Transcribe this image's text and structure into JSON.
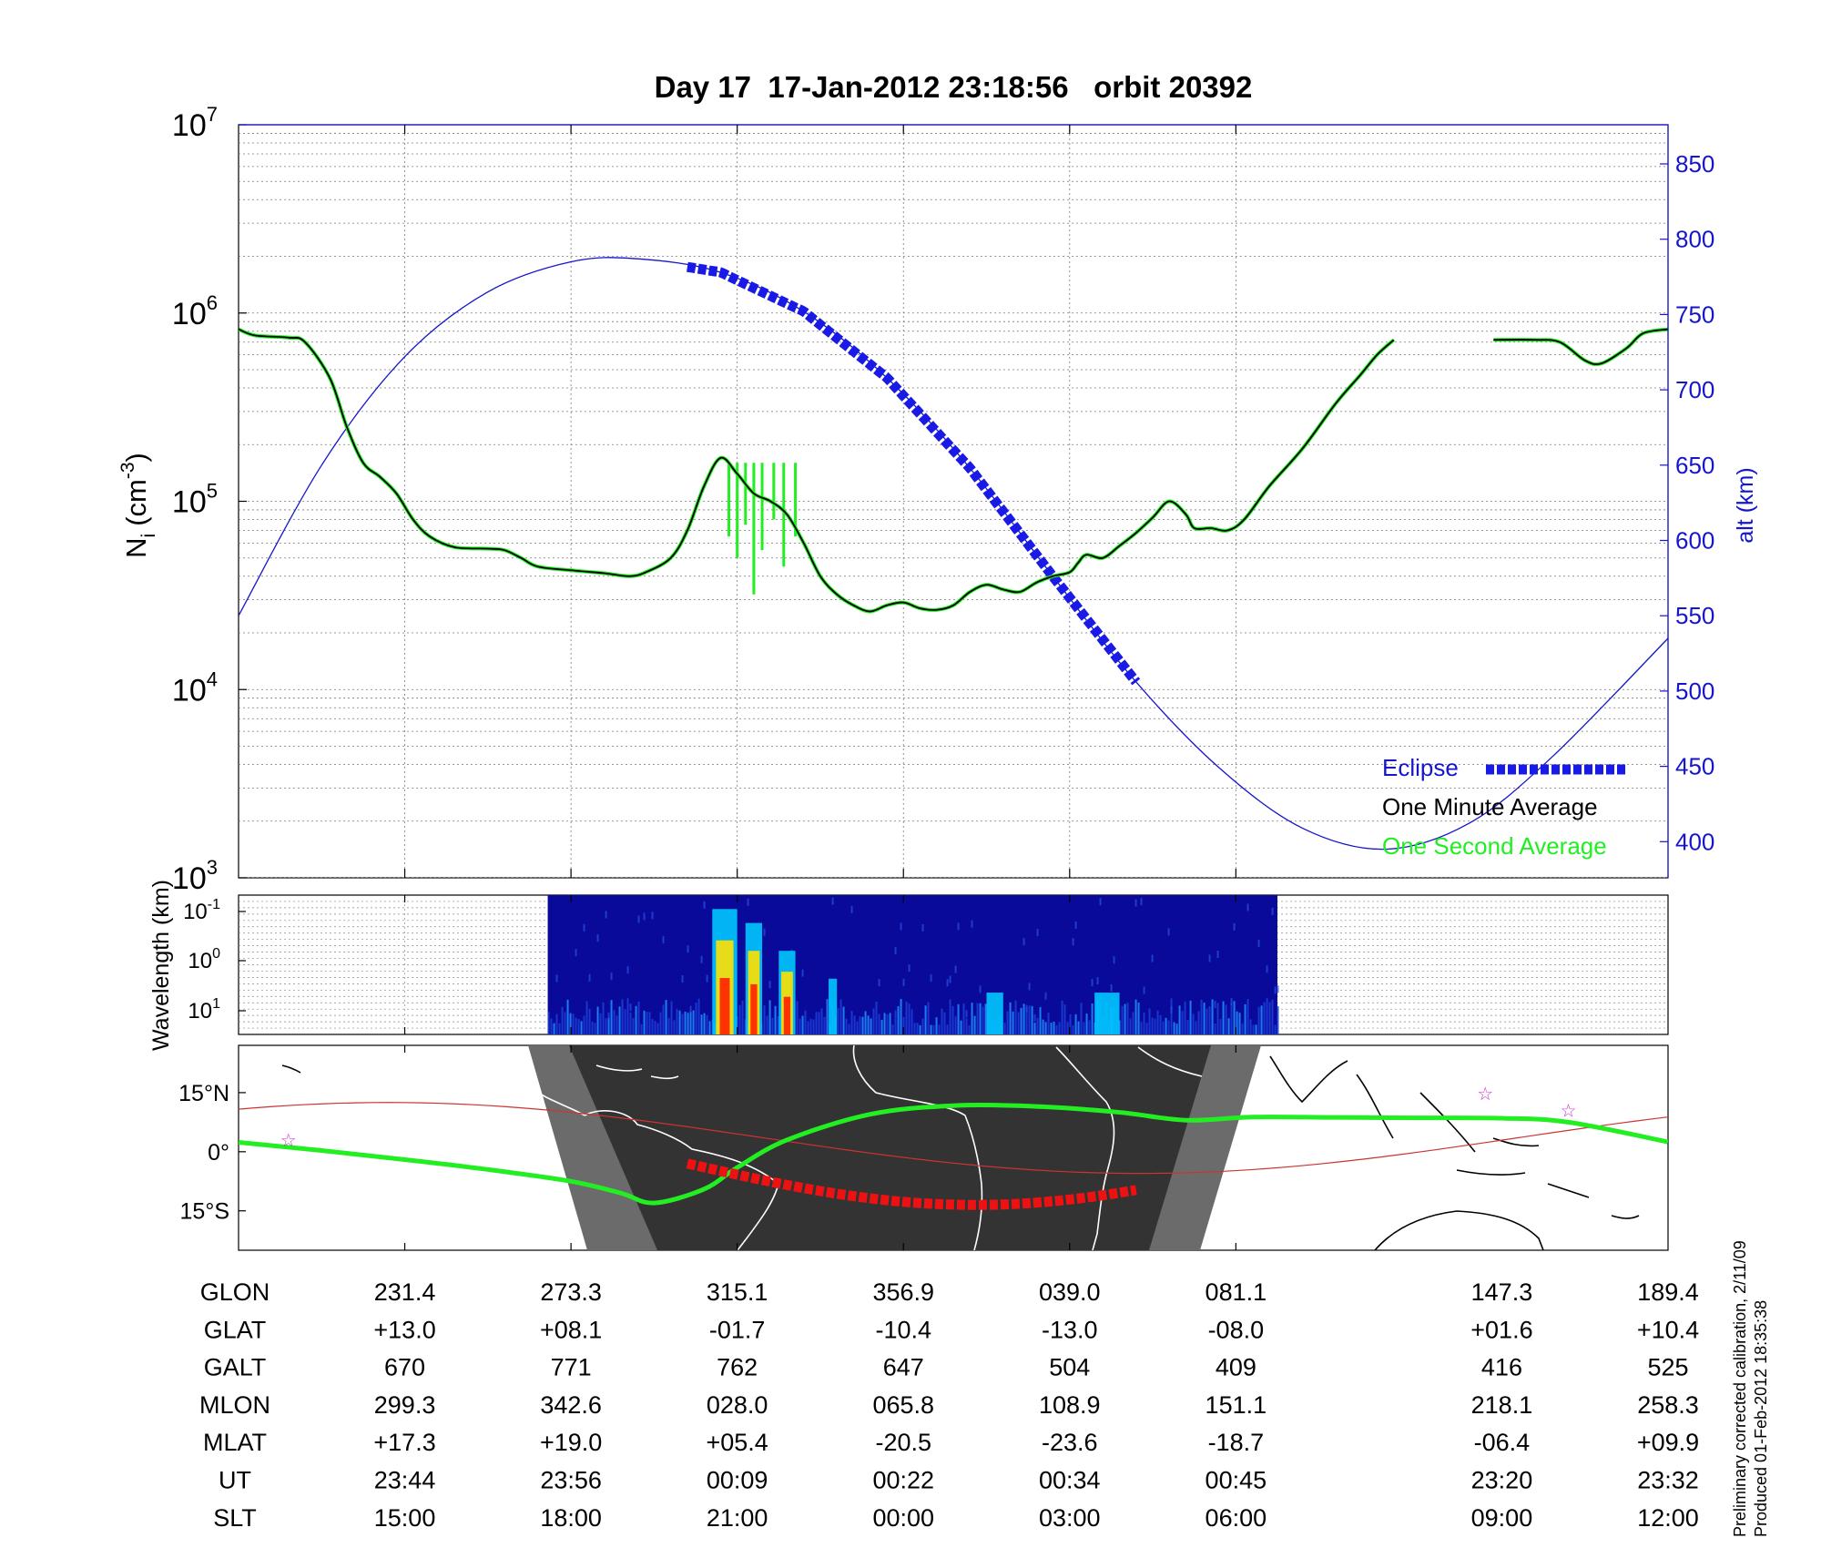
{
  "title": "Day 17  17-Jan-2012 23:18:56   orbit 20392",
  "side_note": {
    "line1": "Preliminary corrected calibration, 2/11/09",
    "line2": "Produced 01-Feb-2012 18:35:38"
  },
  "colors": {
    "blue": "#1515cc",
    "eclipse": "#1a1ae6",
    "green": "#22ee22",
    "black": "#000000",
    "red": "#ee1111",
    "night": "#333333",
    "twilight": "#6b6b6b",
    "magenta": "#cc33cc"
  },
  "chart_data": [
    {
      "type": "line",
      "name": "ion-density-panel",
      "ylabel_left": "N_i (cm^-3)",
      "ylabel_left_main": "N",
      "ylabel_left_sub": "i",
      "ylabel_left_unit_pre": "(cm",
      "ylabel_left_unit_exp": "-3",
      "ylabel_left_unit_post": ")",
      "ylabel_right": "alt (km)",
      "yscale_left": "log",
      "ylim_left": [
        1000,
        10000000
      ],
      "left_ticks": [
        {
          "base": "10",
          "exp": "3",
          "value": 1000
        },
        {
          "base": "10",
          "exp": "4",
          "value": 10000
        },
        {
          "base": "10",
          "exp": "5",
          "value": 100000
        },
        {
          "base": "10",
          "exp": "6",
          "value": 1000000
        },
        {
          "base": "10",
          "exp": "7",
          "value": 10000000
        }
      ],
      "ylim_right": [
        376,
        876
      ],
      "right_ticks": [
        "400",
        "450",
        "500",
        "550",
        "600",
        "650",
        "700",
        "750",
        "800",
        "850"
      ],
      "xlim": [
        0,
        8.6
      ],
      "x_ticks": [
        1,
        2,
        3,
        4,
        5,
        6
      ],
      "grid": true,
      "legend": {
        "position": "bottom-right",
        "entries": [
          {
            "label": "Eclipse",
            "color": "#1a1ae6",
            "style": "dashed-thick"
          },
          {
            "label": "One Minute Average",
            "color": "#000000",
            "style": "line"
          },
          {
            "label": "One Second Average",
            "color": "#22ee22",
            "style": "line"
          }
        ]
      },
      "series": [
        {
          "name": "One Minute Average",
          "segments": [
            [
              [
                0,
                820000
              ],
              [
                0.1,
                760000
              ],
              [
                0.3,
                740000
              ],
              [
                0.4,
                700000
              ],
              [
                0.55,
                450000
              ],
              [
                0.65,
                250000
              ],
              [
                0.75,
                160000
              ],
              [
                0.85,
                135000
              ],
              [
                0.95,
                110000
              ],
              [
                1.05,
                80000
              ],
              [
                1.15,
                65000
              ],
              [
                1.3,
                57000
              ],
              [
                1.5,
                56000
              ],
              [
                1.6,
                55000
              ],
              [
                1.7,
                50000
              ],
              [
                1.8,
                45000
              ],
              [
                2.0,
                43000
              ],
              [
                2.2,
                41500
              ],
              [
                2.35,
                40000
              ],
              [
                2.45,
                42000
              ],
              [
                2.6,
                50000
              ],
              [
                2.7,
                70000
              ],
              [
                2.8,
                120000
              ],
              [
                2.9,
                170000
              ],
              [
                3.0,
                140000
              ],
              [
                3.1,
                110000
              ],
              [
                3.2,
                100000
              ],
              [
                3.3,
                85000
              ],
              [
                3.4,
                60000
              ],
              [
                3.5,
                40000
              ],
              [
                3.6,
                32000
              ],
              [
                3.7,
                28000
              ],
              [
                3.8,
                26000
              ],
              [
                3.9,
                28000
              ],
              [
                4.0,
                29000
              ],
              [
                4.1,
                27000
              ],
              [
                4.2,
                26500
              ],
              [
                4.3,
                28000
              ],
              [
                4.4,
                33000
              ],
              [
                4.5,
                36000
              ],
              [
                4.6,
                34000
              ],
              [
                4.7,
                33000
              ],
              [
                4.8,
                37000
              ],
              [
                4.9,
                40000
              ],
              [
                5.0,
                42000
              ],
              [
                5.05,
                47000
              ],
              [
                5.1,
                52000
              ],
              [
                5.2,
                50000
              ],
              [
                5.3,
                58000
              ],
              [
                5.4,
                68000
              ],
              [
                5.5,
                82000
              ],
              [
                5.6,
                100000
              ],
              [
                5.7,
                85000
              ],
              [
                5.75,
                72000
              ],
              [
                5.85,
                72000
              ],
              [
                5.95,
                70000
              ],
              [
                6.05,
                80000
              ],
              [
                6.2,
                120000
              ],
              [
                6.4,
                190000
              ],
              [
                6.6,
                330000
              ],
              [
                6.75,
                470000
              ],
              [
                6.85,
                600000
              ],
              [
                6.95,
                720000
              ]
            ],
            [
              [
                7.55,
                720000
              ],
              [
                7.8,
                720000
              ],
              [
                7.95,
                700000
              ],
              [
                8.1,
                560000
              ],
              [
                8.2,
                540000
              ],
              [
                8.35,
                650000
              ],
              [
                8.45,
                780000
              ],
              [
                8.6,
                820000
              ]
            ]
          ]
        },
        {
          "name": "One Second Average",
          "spikes": [
            [
              2.95,
              65000
            ],
            [
              3.0,
              50000
            ],
            [
              3.05,
              75000
            ],
            [
              3.1,
              32000
            ],
            [
              3.15,
              55000
            ],
            [
              3.22,
              80000
            ],
            [
              3.28,
              45000
            ],
            [
              3.35,
              65000
            ]
          ]
        },
        {
          "name": "alt (km)",
          "axis": "right",
          "values_km": [
            [
              0,
              550
            ],
            [
              0.5,
              650
            ],
            [
              1.0,
              722
            ],
            [
              1.5,
              765
            ],
            [
              2.0,
              785
            ],
            [
              2.4,
              787
            ],
            [
              2.9,
              778
            ],
            [
              3.4,
              752
            ],
            [
              3.9,
              708
            ],
            [
              4.4,
              648
            ],
            [
              4.9,
              576
            ],
            [
              5.4,
              506
            ],
            [
              5.9,
              449
            ],
            [
              6.4,
              409
            ],
            [
              6.9,
              395
            ],
            [
              7.4,
              412
            ],
            [
              7.9,
              456
            ],
            [
              8.6,
              535
            ]
          ]
        },
        {
          "name": "Eclipse",
          "axis": "right",
          "x_range": [
            2.7,
            5.4
          ]
        }
      ]
    },
    {
      "type": "heatmap",
      "name": "spectrogram-panel",
      "ylabel": "Wavelength (km)",
      "y_ticks": [
        {
          "base": "10",
          "exp": "-1"
        },
        {
          "base": "10",
          "exp": "0"
        },
        {
          "base": "10",
          "exp": "1"
        }
      ],
      "x_range": [
        1.86,
        6.25
      ],
      "bursts": [
        [
          2.85,
          3.0,
          0.9
        ],
        [
          3.05,
          3.15,
          0.8
        ],
        [
          3.25,
          3.35,
          0.6
        ],
        [
          3.55,
          3.6,
          0.4
        ],
        [
          4.5,
          4.6,
          0.3
        ],
        [
          5.15,
          5.3,
          0.3
        ]
      ]
    },
    {
      "type": "scatter",
      "name": "ground-track-map-panel",
      "y_ticks": [
        "15°N",
        "0°",
        "15°S"
      ],
      "ylim": [
        -25,
        27
      ],
      "track": [
        [
          0,
          2.4
        ],
        [
          0.5,
          0.3
        ],
        [
          1,
          -2
        ],
        [
          1.5,
          -4.5
        ],
        [
          2,
          -7.5
        ],
        [
          2.3,
          -10.5
        ],
        [
          2.5,
          -13
        ],
        [
          2.8,
          -9.5
        ],
        [
          3.0,
          -4
        ],
        [
          3.3,
          3
        ],
        [
          3.8,
          9.5
        ],
        [
          4.3,
          11.7
        ],
        [
          4.8,
          11.5
        ],
        [
          5.3,
          10
        ],
        [
          5.7,
          8
        ],
        [
          6.1,
          8.8
        ],
        [
          6.6,
          8.7
        ],
        [
          7.1,
          8.6
        ],
        [
          7.6,
          8.5
        ],
        [
          8.0,
          7.5
        ],
        [
          8.6,
          2.5
        ]
      ],
      "eclipse_x_range": [
        2.7,
        5.4
      ],
      "stars": [
        [
          0.3,
          3.0
        ],
        [
          7.5,
          14.7
        ],
        [
          8.0,
          10.5
        ]
      ]
    }
  ],
  "table": {
    "columns": [
      "1",
      "2",
      "3",
      "4",
      "5",
      "6",
      "7.6",
      "8.6"
    ],
    "rows": [
      {
        "label": "GLON",
        "values": [
          "231.4",
          "273.3",
          "315.1",
          "356.9",
          "039.0",
          "081.1",
          "147.3",
          "189.4"
        ]
      },
      {
        "label": "GLAT",
        "values": [
          "+13.0",
          "+08.1",
          "-01.7",
          "-10.4",
          "-13.0",
          "-08.0",
          "+01.6",
          "+10.4"
        ]
      },
      {
        "label": "GALT",
        "values": [
          "670",
          "771",
          "762",
          "647",
          "504",
          "409",
          "416",
          "525"
        ]
      },
      {
        "label": "MLON",
        "values": [
          "299.3",
          "342.6",
          "028.0",
          "065.8",
          "108.9",
          "151.1",
          "218.1",
          "258.3"
        ]
      },
      {
        "label": "MLAT",
        "values": [
          "+17.3",
          "+19.0",
          "+05.4",
          "-20.5",
          "-23.6",
          "-18.7",
          "-06.4",
          "+09.9"
        ]
      },
      {
        "label": "UT",
        "values": [
          "23:44",
          "23:56",
          "00:09",
          "00:22",
          "00:34",
          "00:45",
          "23:20",
          "23:32"
        ]
      },
      {
        "label": "SLT",
        "values": [
          "15:00",
          "18:00",
          "21:00",
          "00:00",
          "03:00",
          "06:00",
          "09:00",
          "12:00"
        ]
      }
    ]
  }
}
